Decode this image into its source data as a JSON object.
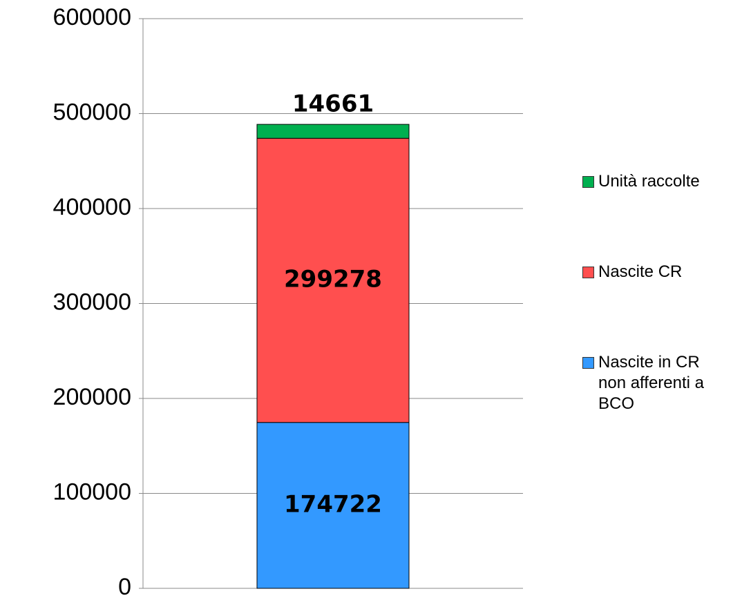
{
  "chart_data": {
    "type": "stacked_bar",
    "categories": [
      null
    ],
    "series": [
      {
        "name": "Nascite in CR non afferenti a BCO",
        "color": "#3399ff",
        "values": [
          174722
        ]
      },
      {
        "name": "Nascite CR",
        "color": "#ff4f4f",
        "values": [
          299278
        ]
      },
      {
        "name": "Unità raccolte",
        "color": "#00b050",
        "values": [
          14661
        ]
      }
    ],
    "ylim": [
      0,
      600000
    ],
    "yticks": [
      0,
      100000,
      200000,
      300000,
      400000,
      500000,
      600000
    ],
    "grid": true,
    "legend": "right"
  }
}
